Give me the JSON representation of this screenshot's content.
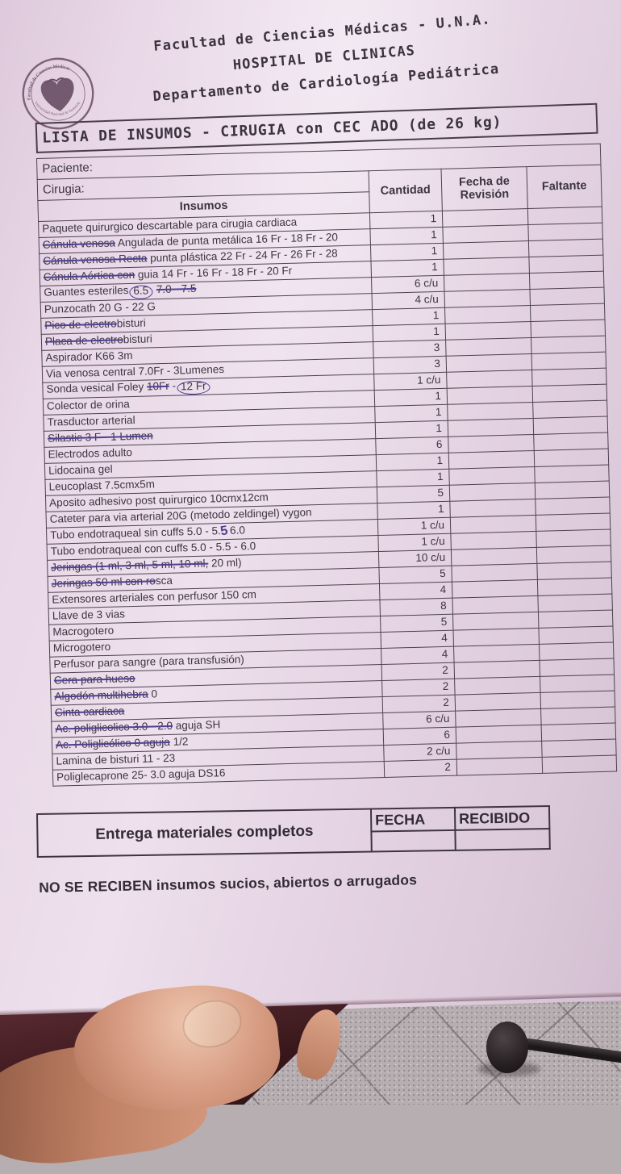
{
  "letterhead": {
    "line1": "Facultad de Ciencias Médicas - U.N.A.",
    "line2": "HOSPITAL DE CLINICAS",
    "line3": "Departamento de Cardiología Pediátrica",
    "seal": {
      "icon": "heart-seal-icon",
      "ring_top_text": "Facultad de Ciencias Médicas",
      "ring_bottom_text": "Universidad Nacional de Asunción"
    }
  },
  "title": "LISTA DE INSUMOS - CIRUGIA con CEC ADO (de 26 kg)",
  "form": {
    "paciente_label": "Paciente:",
    "cirugia_label": "Cirugia:",
    "columns": {
      "insumos": "Insumos",
      "cantidad": "Cantidad",
      "fecha_revision": "Fecha de Revisión",
      "faltante": "Faltante"
    }
  },
  "items": [
    {
      "segments": [
        {
          "t": "Paquete quirurgico descartable para cirugia cardiaca"
        }
      ],
      "qty": "1"
    },
    {
      "segments": [
        {
          "t": "Cánula venosa",
          "s": true
        },
        {
          "t": " Angulada de punta metálica 16 Fr - 18 Fr - 20"
        }
      ],
      "qty": "1"
    },
    {
      "segments": [
        {
          "t": "Cánula venosa Recta",
          "s": true
        },
        {
          "t": " punta plástica 22 Fr - 24 Fr - 26 Fr - 28"
        }
      ],
      "qty": "1"
    },
    {
      "segments": [
        {
          "t": "Cánula Aórtica con",
          "s": true
        },
        {
          "t": " guia 14 Fr - 16 Fr - 18 Fr - 20 Fr"
        }
      ],
      "qty": "1"
    },
    {
      "segments": [
        {
          "t": "Guantes esteriles"
        },
        {
          "t": "6.5",
          "c": true
        },
        {
          "t": " "
        },
        {
          "t": "7.0 - 7.5",
          "s": true
        }
      ],
      "qty": "6 c/u"
    },
    {
      "segments": [
        {
          "t": "Punzocath 20 G - 22 G"
        }
      ],
      "qty": "4 c/u"
    },
    {
      "segments": [
        {
          "t": "Pico de electro",
          "s": true
        },
        {
          "t": "bisturi"
        }
      ],
      "qty": "1"
    },
    {
      "segments": [
        {
          "t": "Placa de electro",
          "s": true
        },
        {
          "t": "bisturi"
        }
      ],
      "qty": "1"
    },
    {
      "segments": [
        {
          "t": "Aspirador K66 3m"
        }
      ],
      "qty": "3"
    },
    {
      "segments": [
        {
          "t": "Via venosa central 7.0Fr - 3Lumenes"
        }
      ],
      "qty": "3"
    },
    {
      "segments": [
        {
          "t": "Sonda vesical Foley "
        },
        {
          "t": "10Fr",
          "s": true
        },
        {
          "t": " -"
        },
        {
          "t": "12 Fr",
          "c": true
        }
      ],
      "qty": "1 c/u"
    },
    {
      "segments": [
        {
          "t": "Colector de orina"
        }
      ],
      "qty": "1"
    },
    {
      "segments": [
        {
          "t": "Trasductor arterial"
        }
      ],
      "qty": "1"
    },
    {
      "segments": [
        {
          "t": "Silastic 3 F - 1 Lumen",
          "s": true
        }
      ],
      "qty": "1"
    },
    {
      "segments": [
        {
          "t": "Electrodos adulto"
        }
      ],
      "qty": "6"
    },
    {
      "segments": [
        {
          "t": "Lidocaina gel"
        }
      ],
      "qty": "1"
    },
    {
      "segments": [
        {
          "t": "Leucoplast 7.5cmx5m"
        }
      ],
      "qty": "1"
    },
    {
      "segments": [
        {
          "t": "Aposito adhesivo post quirurgico 10cmx12cm"
        }
      ],
      "qty": "5"
    },
    {
      "segments": [
        {
          "t": "Cateter para via arterial 20G (metodo zeldingel) vygon"
        }
      ],
      "qty": "1"
    },
    {
      "segments": [
        {
          "t": "Tubo endotraqueal sin cuffs 5.0 - 5."
        },
        {
          "t": "5",
          "p": true
        },
        {
          "t": " 6.0"
        }
      ],
      "qty": "1 c/u"
    },
    {
      "segments": [
        {
          "t": "Tubo endotraqueal con cuffs 5.0 - 5.5 - 6.0"
        }
      ],
      "qty": "1 c/u"
    },
    {
      "segments": [
        {
          "t": "Jeringas (1 ml, 3 ml, 5 ml, 10 ml,",
          "s": true
        },
        {
          "t": " 20 ml)"
        }
      ],
      "qty": "10 c/u"
    },
    {
      "segments": [
        {
          "t": "Jeringas 50 ml con ro",
          "s": true
        },
        {
          "t": "sca"
        }
      ],
      "qty": "5"
    },
    {
      "segments": [
        {
          "t": "Extensores arteriales con perfusor 150 cm"
        }
      ],
      "qty": "4"
    },
    {
      "segments": [
        {
          "t": "Llave de 3 vias"
        }
      ],
      "qty": "8"
    },
    {
      "segments": [
        {
          "t": "Macrogotero"
        }
      ],
      "qty": "5"
    },
    {
      "segments": [
        {
          "t": "Microgotero"
        }
      ],
      "qty": "4"
    },
    {
      "segments": [
        {
          "t": "Perfusor para sangre (para transfusión)"
        }
      ],
      "qty": "4"
    },
    {
      "segments": [
        {
          "t": "Cera para hueso",
          "s": true
        }
      ],
      "qty": "2"
    },
    {
      "segments": [
        {
          "t": "Algodón multihebra",
          "s": true
        },
        {
          "t": " 0"
        }
      ],
      "qty": "2"
    },
    {
      "segments": [
        {
          "t": "Cinta cardiaca ",
          "s": true
        }
      ],
      "qty": "2"
    },
    {
      "segments": [
        {
          "t": "Ac. poliglicolico 3.0 - 2.0",
          "s": true
        },
        {
          "t": " aguja SH"
        }
      ],
      "qty": "6 c/u"
    },
    {
      "segments": [
        {
          "t": "Ac. Poliglicólico 0 aguja",
          "s": true
        },
        {
          "t": " 1/2"
        }
      ],
      "qty": "6"
    },
    {
      "segments": [
        {
          "t": "Lamina de bisturi 11 - 23"
        }
      ],
      "qty": "2 c/u"
    },
    {
      "segments": [
        {
          "t": "Poliglecaprone 25- 3.0 aguja DS16"
        }
      ],
      "qty": "2"
    }
  ],
  "footer": {
    "entrega_label": "Entrega materiales completos",
    "fecha_label": "FECHA",
    "recibido_label": "RECIBIDO"
  },
  "note": "NO SE RECIBEN insumos sucios, abiertos o arrugados",
  "colors": {
    "paper": "#e9d8e8",
    "ink": "#3d3541",
    "pen": "#4e4194",
    "table_border": "#4e4250"
  },
  "scene": {
    "background_objects": [
      "thumb-holding-paper",
      "gray-tiled-floor",
      "dark-chair-leg"
    ]
  }
}
